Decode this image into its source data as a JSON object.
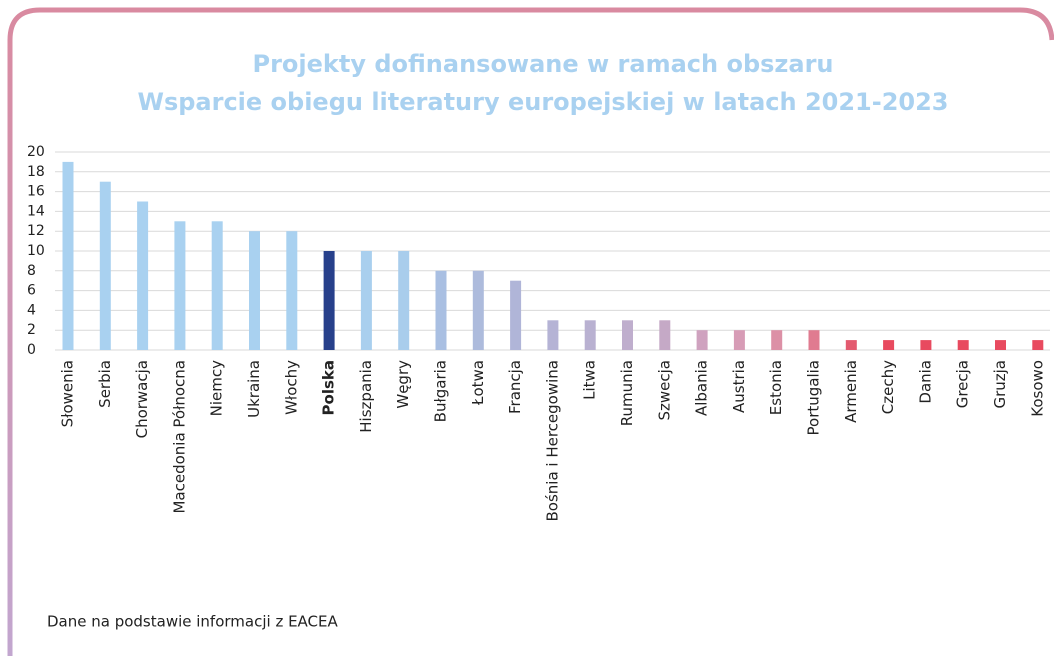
{
  "chart_data": {
    "type": "bar",
    "title": [
      "Projekty dofinansowane w ramach obszaru",
      "Wsparcie obiegu literatury europejskiej w latach 2021-2023"
    ],
    "categories": [
      "Słowenia",
      "Serbia",
      "Chorwacja",
      "Macedonia Północna",
      "Niemcy",
      "Ukraina",
      "Włochy",
      "Polska",
      "Hiszpania",
      "Węgry",
      "Bułgaria",
      "Łotwa",
      "Francja",
      "Bośnia i Hercegowina",
      "Litwa",
      "Rumunia",
      "Szwecja",
      "Albania",
      "Austria",
      "Estonia",
      "Portugalia",
      "Armenia",
      "Czechy",
      "Dania",
      "Grecja",
      "Gruzja",
      "Kosowo"
    ],
    "values": [
      19,
      17,
      15,
      13,
      13,
      12,
      12,
      10,
      10,
      10,
      8,
      8,
      7,
      3,
      3,
      3,
      3,
      2,
      2,
      2,
      2,
      1,
      1,
      1,
      1,
      1,
      1
    ],
    "colors": [
      "#a9d1f0",
      "#a9d1f0",
      "#a9d1f0",
      "#a9d1f0",
      "#a9d1f0",
      "#a9d1f0",
      "#a9d1f0",
      "#27408b",
      "#a9cfee",
      "#a9cdec",
      "#a9bfe2",
      "#adbbdc",
      "#b0b5d8",
      "#b5b3d5",
      "#b9b1d1",
      "#bfaecd",
      "#c5a9c6",
      "#cfa2bf",
      "#d79cb6",
      "#dc90a6",
      "#e07b90",
      "#e35a6f",
      "#e84a5f",
      "#e84a5f",
      "#e84a5f",
      "#e84a5f",
      "#e84a5f"
    ],
    "highlight": 7,
    "ylim": [
      0,
      20
    ],
    "yticks": [
      0,
      2,
      4,
      6,
      8,
      10,
      12,
      14,
      16,
      18,
      20
    ],
    "grid": true,
    "note": "Dane na podstawie informacji z EACEA"
  }
}
